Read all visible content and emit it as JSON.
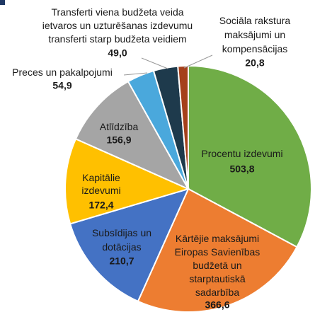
{
  "chart_data": {
    "type": "pie",
    "categories": [
      "Procentu izdevumi",
      "Kārtējie maksājumi\nEiropas Savienības\nbudžetā un\nstarptautiskā\nsadarbība",
      "Subsīdijas un\ndotācijas",
      "Kapitālie\nizdevumi",
      "Atlīdzība",
      "Preces un pakalpojumi",
      "Transferti viena budžeta veida\nietvaros un uzturēšanas izdevumu\ntransferti starp budžeta veidiem",
      "Sociāla rakstura\nmaksājumi un\nkompensācijas"
    ],
    "values": [
      503.8,
      366.6,
      210.7,
      172.4,
      156.9,
      54.9,
      49.0,
      20.8
    ],
    "value_labels": [
      "503,8",
      "366,6",
      "210,7",
      "172,4",
      "156,9",
      "54,9",
      "49,0",
      "20,8"
    ],
    "colors": [
      "#70ad47",
      "#ed7d31",
      "#4472c4",
      "#ffc000",
      "#a5a5a5",
      "#4aa8dc",
      "#1e3a4c",
      "#a5401b"
    ]
  }
}
